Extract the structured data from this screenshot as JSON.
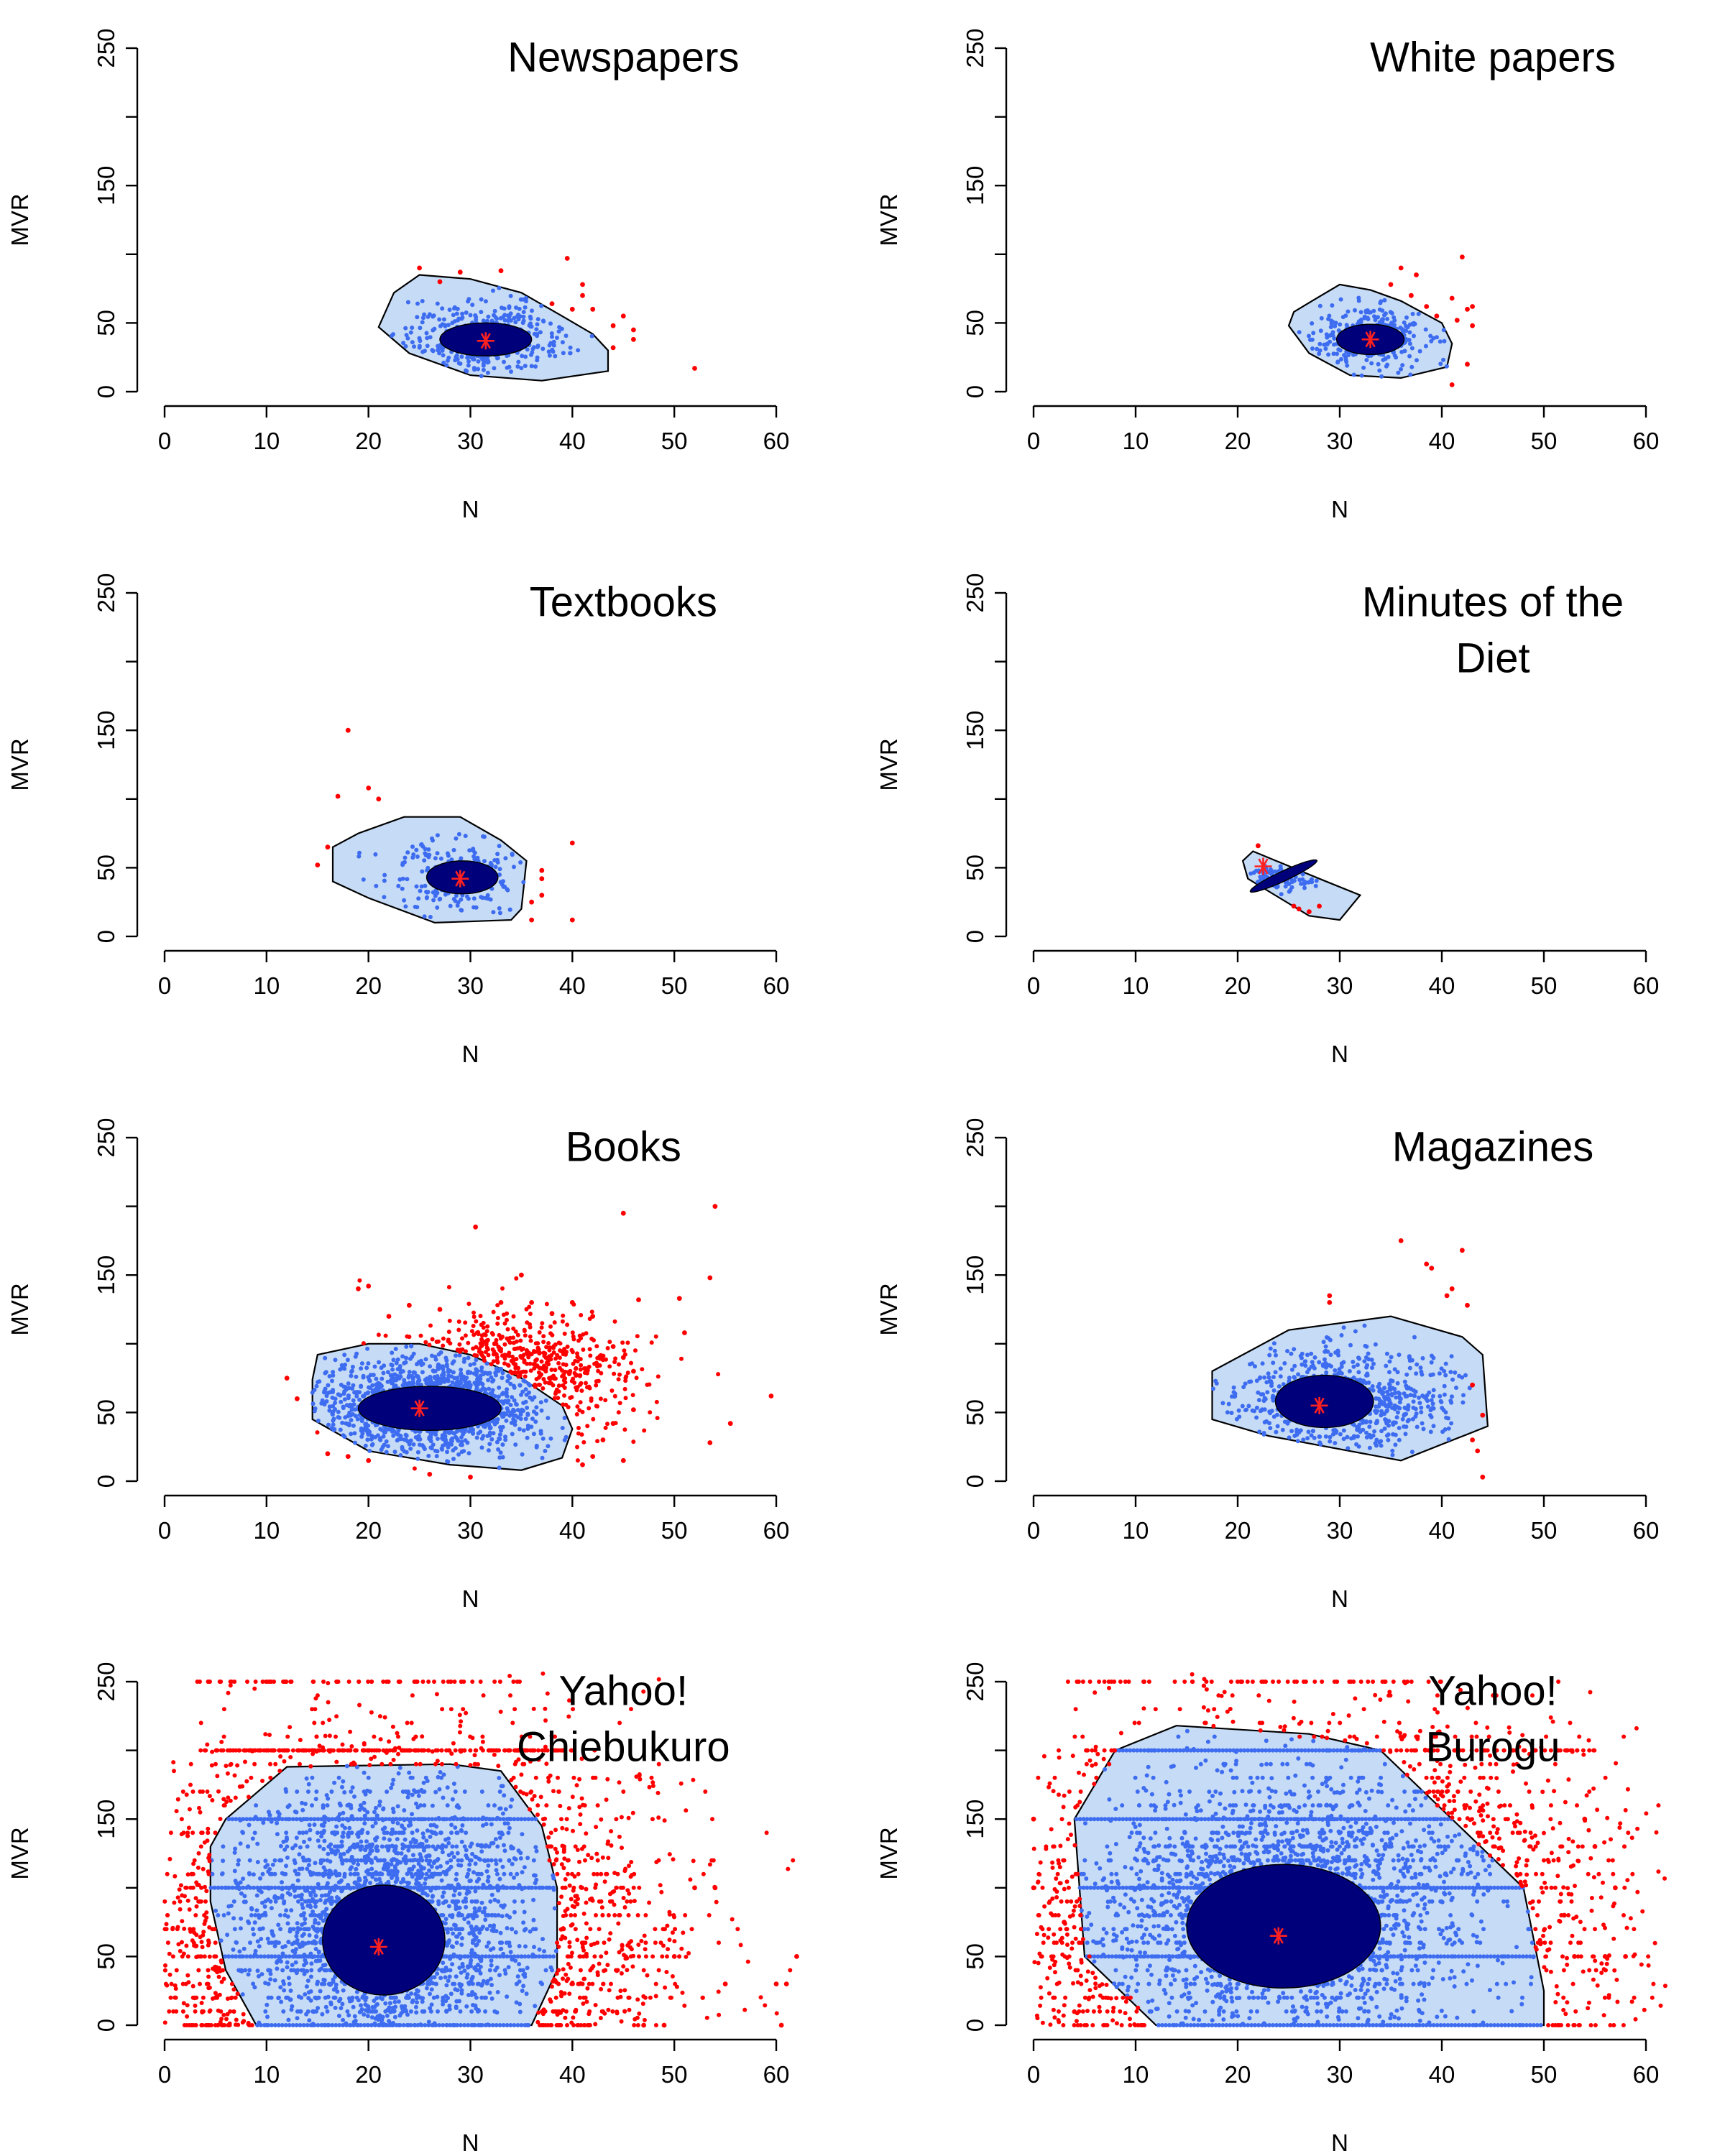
{
  "figure": {
    "xlabel": "N",
    "ylabel": "MVR",
    "xticks": [
      "0",
      "10",
      "20",
      "30",
      "40",
      "50",
      "60"
    ],
    "yticks": [
      "0",
      "50",
      "150",
      "250"
    ]
  },
  "colors": {
    "hull_fill": "#c6dbf5",
    "hull_edge": "#000000",
    "points": "#3d6cf0",
    "core": "#00007a",
    "outliers": "#ff0000",
    "median": "#ff2020"
  },
  "chart_data": [
    {
      "type": "scatter",
      "title": [
        "Newspapers"
      ],
      "xlabel": "N",
      "ylabel": "MVR",
      "xlim": [
        0,
        60
      ],
      "ylim": [
        0,
        250
      ],
      "median": [
        31.5,
        37
      ],
      "hull": [
        [
          21,
          47
        ],
        [
          22.5,
          72
        ],
        [
          25,
          85
        ],
        [
          30,
          82
        ],
        [
          35,
          72
        ],
        [
          39,
          55
        ],
        [
          42,
          42
        ],
        [
          43.5,
          30
        ],
        [
          43.5,
          15
        ],
        [
          37,
          8
        ],
        [
          30,
          12
        ],
        [
          24,
          28
        ]
      ],
      "core": {
        "cx": 31.5,
        "cy": 38,
        "rx": 4.5,
        "ry": 12
      },
      "cloud": {
        "cx": 31.5,
        "cy": 40,
        "sx": 4.0,
        "sy": 13,
        "n": 420
      },
      "outliers": [
        [
          25,
          90
        ],
        [
          29,
          87
        ],
        [
          39.5,
          97
        ],
        [
          41,
          78
        ],
        [
          42,
          60
        ],
        [
          44,
          48
        ],
        [
          45,
          55
        ],
        [
          46,
          45
        ],
        [
          46,
          38
        ],
        [
          44,
          32
        ],
        [
          52,
          17
        ],
        [
          40,
          60
        ],
        [
          38,
          64
        ],
        [
          33,
          88
        ],
        [
          27,
          80
        ],
        [
          41,
          70
        ]
      ]
    },
    {
      "type": "scatter",
      "title": [
        "White papers"
      ],
      "xlabel": "N",
      "ylabel": "MVR",
      "xlim": [
        0,
        60
      ],
      "ylim": [
        0,
        250
      ],
      "median": [
        33,
        38
      ],
      "hull": [
        [
          25.5,
          58
        ],
        [
          27.5,
          67
        ],
        [
          30,
          78
        ],
        [
          33,
          74
        ],
        [
          36,
          66
        ],
        [
          40,
          50
        ],
        [
          41,
          35
        ],
        [
          40.5,
          18
        ],
        [
          36,
          10
        ],
        [
          31,
          12
        ],
        [
          27,
          28
        ],
        [
          25,
          48
        ]
      ],
      "core": {
        "cx": 33,
        "cy": 38,
        "rx": 3.3,
        "ry": 11
      },
      "cloud": {
        "cx": 33,
        "cy": 40,
        "sx": 3.0,
        "sy": 12,
        "n": 320
      },
      "outliers": [
        [
          36,
          90
        ],
        [
          37.5,
          85
        ],
        [
          42,
          98
        ],
        [
          41,
          68
        ],
        [
          42.5,
          60
        ],
        [
          43,
          62
        ],
        [
          41.5,
          52
        ],
        [
          42.5,
          20
        ],
        [
          41,
          5
        ],
        [
          37,
          70
        ],
        [
          39.5,
          55
        ],
        [
          43,
          48
        ],
        [
          38.5,
          62
        ],
        [
          35,
          78
        ]
      ]
    },
    {
      "type": "scatter",
      "title": [
        "Textbooks"
      ],
      "xlabel": "N",
      "ylabel": "MVR",
      "xlim": [
        0,
        60
      ],
      "ylim": [
        0,
        250
      ],
      "median": [
        29,
        42
      ],
      "hull": [
        [
          16.5,
          65
        ],
        [
          19,
          75
        ],
        [
          23.5,
          87
        ],
        [
          29,
          87
        ],
        [
          33,
          70
        ],
        [
          35.5,
          55
        ],
        [
          35,
          20
        ],
        [
          34,
          12
        ],
        [
          26.5,
          10
        ],
        [
          20,
          28
        ],
        [
          16.5,
          40
        ]
      ],
      "core": {
        "cx": 29.2,
        "cy": 43,
        "rx": 3.5,
        "ry": 12
      },
      "cloud": {
        "cx": 28.5,
        "cy": 45,
        "sx": 3.8,
        "sy": 14,
        "n": 220
      },
      "outliers": [
        [
          18,
          150
        ],
        [
          17,
          102
        ],
        [
          20,
          108
        ],
        [
          21,
          100
        ],
        [
          15,
          52
        ],
        [
          16,
          65
        ],
        [
          40,
          68
        ],
        [
          37,
          48
        ],
        [
          37,
          42
        ],
        [
          36,
          25
        ],
        [
          36,
          12
        ],
        [
          40,
          12
        ],
        [
          37,
          30
        ]
      ]
    },
    {
      "type": "scatter",
      "title": [
        "Minutes of the",
        "Diet"
      ],
      "xlabel": "N",
      "ylabel": "MVR",
      "xlim": [
        0,
        60
      ],
      "ylim": [
        0,
        250
      ],
      "median": [
        22.5,
        51
      ],
      "hull": [
        [
          20.5,
          55
        ],
        [
          21.5,
          62
        ],
        [
          28,
          42
        ],
        [
          32,
          30
        ],
        [
          30,
          12
        ],
        [
          27,
          15
        ],
        [
          21,
          42
        ]
      ],
      "core": {
        "cx": 24.5,
        "cy": 44,
        "rx": 3.6,
        "ry": 3.6,
        "rotate": -25
      },
      "cloud": {
        "cx": 24.5,
        "cy": 44,
        "sx": 2.2,
        "sy": 5,
        "n": 90
      },
      "outliers": [
        [
          22,
          66
        ],
        [
          26,
          20
        ],
        [
          27,
          18
        ],
        [
          28,
          22
        ],
        [
          25.5,
          22
        ]
      ]
    },
    {
      "type": "scatter",
      "title": [
        "Books"
      ],
      "xlabel": "N",
      "ylabel": "MVR",
      "xlim": [
        0,
        60
      ],
      "ylim": [
        0,
        250
      ],
      "median": [
        25,
        53
      ],
      "hull": [
        [
          14.5,
          74
        ],
        [
          15,
          92
        ],
        [
          20,
          100
        ],
        [
          25,
          100
        ],
        [
          30,
          92
        ],
        [
          35,
          75
        ],
        [
          39,
          55
        ],
        [
          40,
          38
        ],
        [
          39,
          17
        ],
        [
          35,
          8
        ],
        [
          28,
          12
        ],
        [
          20,
          22
        ],
        [
          14.5,
          45
        ]
      ],
      "core": {
        "cx": 26,
        "cy": 53,
        "rx": 7,
        "ry": 16
      },
      "cloud": {
        "cx": 26,
        "cy": 55,
        "sx": 5.5,
        "sy": 18,
        "n": 1400
      },
      "outliers": [
        [
          30.5,
          185
        ],
        [
          45,
          195
        ],
        [
          54,
          200
        ],
        [
          53.5,
          148
        ],
        [
          46.5,
          132
        ],
        [
          50.5,
          133
        ],
        [
          51,
          108
        ],
        [
          59.5,
          62
        ],
        [
          55.5,
          42
        ],
        [
          53.5,
          28
        ],
        [
          35,
          150
        ],
        [
          12,
          75
        ],
        [
          13,
          60
        ],
        [
          19,
          140
        ],
        [
          20,
          142
        ],
        [
          22,
          120
        ],
        [
          24,
          128
        ],
        [
          27,
          125
        ],
        [
          33,
          130
        ],
        [
          36,
          130
        ],
        [
          38,
          122
        ],
        [
          40,
          130
        ],
        [
          42,
          120
        ],
        [
          44,
          98
        ],
        [
          45,
          90
        ],
        [
          46,
          80
        ],
        [
          46,
          52
        ],
        [
          44,
          42
        ],
        [
          43,
          30
        ],
        [
          42,
          18
        ],
        [
          41,
          12
        ],
        [
          45,
          15
        ],
        [
          16,
          20
        ],
        [
          18,
          18
        ],
        [
          20,
          15
        ],
        [
          26,
          5
        ],
        [
          30,
          3
        ]
      ],
      "outlier_cloud": {
        "cx": 34,
        "cy": 78,
        "sx": 6,
        "sy": 22,
        "n": 460
      }
    },
    {
      "type": "scatter",
      "title": [
        "Magazines"
      ],
      "xlabel": "N",
      "ylabel": "MVR",
      "xlim": [
        0,
        60
      ],
      "ylim": [
        0,
        250
      ],
      "median": [
        28,
        55
      ],
      "hull": [
        [
          17.5,
          80
        ],
        [
          25,
          110
        ],
        [
          35,
          120
        ],
        [
          42,
          105
        ],
        [
          44,
          92
        ],
        [
          44.5,
          40
        ],
        [
          36,
          15
        ],
        [
          23,
          33
        ],
        [
          17.5,
          45
        ]
      ],
      "core": {
        "cx": 28.5,
        "cy": 58,
        "rx": 4.8,
        "ry": 19
      },
      "cloud": {
        "cx": 30,
        "cy": 58,
        "sx": 5.8,
        "sy": 20,
        "n": 720
      },
      "outliers": [
        [
          36,
          175
        ],
        [
          39,
          155
        ],
        [
          38.5,
          158
        ],
        [
          42,
          168
        ],
        [
          41,
          140
        ],
        [
          42.5,
          128
        ],
        [
          40.5,
          135
        ],
        [
          29,
          130
        ],
        [
          29,
          135
        ],
        [
          43,
          70
        ],
        [
          44,
          48
        ],
        [
          43,
          30
        ],
        [
          43.5,
          22
        ],
        [
          44,
          3
        ]
      ]
    },
    {
      "type": "scatter",
      "title": [
        "Yahoo!",
        "Chiebukuro"
      ],
      "xlabel": "N",
      "ylabel": "MVR",
      "xlim": [
        0,
        60
      ],
      "ylim": [
        0,
        250
      ],
      "median": [
        21,
        57
      ],
      "hull": [
        [
          9,
          0
        ],
        [
          36,
          0
        ],
        [
          38.5,
          40
        ],
        [
          38.5,
          100
        ],
        [
          37,
          145
        ],
        [
          33,
          185
        ],
        [
          28,
          190
        ],
        [
          12,
          188
        ],
        [
          6,
          150
        ],
        [
          4.5,
          130
        ],
        [
          4.5,
          90
        ],
        [
          6,
          40
        ]
      ],
      "core": {
        "cx": 21.5,
        "cy": 62,
        "rx": 6,
        "ry": 40
      },
      "cloud": {
        "cx": 21.5,
        "cy": 75,
        "sx": 7.5,
        "sy": 52,
        "n": 2600
      },
      "bands": [
        0,
        50,
        100,
        150,
        200
      ],
      "outlier_bands": [
        [
          0,
          2,
          42,
          170
        ],
        [
          200,
          3,
          40,
          170
        ],
        [
          250,
          2,
          35,
          60
        ]
      ],
      "outlier_cloud": {
        "cx": 22,
        "cy": 60,
        "sx": 12,
        "sy": 70,
        "n": 900
      },
      "outliers": [
        [
          60,
          30
        ],
        [
          60.5,
          0
        ],
        [
          61,
          30
        ],
        [
          62,
          50
        ],
        [
          52,
          100
        ],
        [
          54,
          100
        ],
        [
          50,
          50
        ],
        [
          55,
          30
        ],
        [
          49,
          0
        ],
        [
          47,
          0
        ]
      ]
    },
    {
      "type": "scatter",
      "title": [
        "Yahoo!",
        "Burogu"
      ],
      "xlabel": "N",
      "ylabel": "MVR",
      "xlim": [
        0,
        60
      ],
      "ylim": [
        0,
        250
      ],
      "median": [
        24,
        65
      ],
      "hull": [
        [
          12,
          0
        ],
        [
          50,
          0
        ],
        [
          50,
          25
        ],
        [
          48,
          100
        ],
        [
          34,
          200
        ],
        [
          27,
          212
        ],
        [
          14,
          218
        ],
        [
          8,
          200
        ],
        [
          4,
          150
        ],
        [
          5,
          50
        ]
      ],
      "core": {
        "cx": 24.5,
        "cy": 72,
        "rx": 9.5,
        "ry": 45
      },
      "cloud": {
        "cx": 24.5,
        "cy": 85,
        "sx": 9.5,
        "sy": 50,
        "n": 2600
      },
      "bands": [
        0,
        50,
        100,
        150,
        200
      ],
      "outlier_bands": [
        [
          0,
          4,
          58,
          120
        ],
        [
          200,
          5,
          55,
          120
        ],
        [
          250,
          4,
          40,
          50
        ]
      ],
      "outlier_cloud": {
        "cx": 25,
        "cy": 70,
        "sx": 14,
        "sy": 70,
        "n": 700
      },
      "outliers": [
        [
          0,
          150
        ],
        [
          0,
          100
        ],
        [
          3,
          75
        ],
        [
          57,
          100
        ],
        [
          58,
          50
        ],
        [
          54,
          150
        ],
        [
          55,
          130
        ],
        [
          52,
          80
        ],
        [
          53,
          50
        ],
        [
          56,
          50
        ]
      ]
    }
  ]
}
